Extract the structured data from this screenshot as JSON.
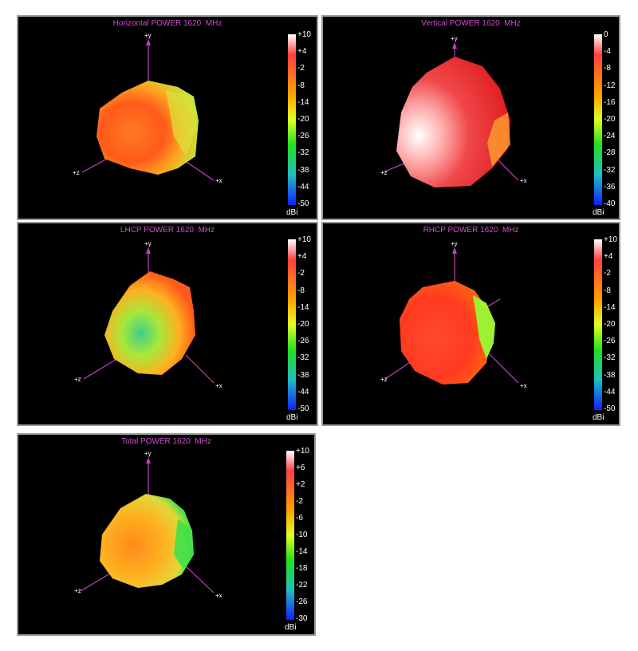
{
  "chart_data": [
    {
      "type": "heatmap",
      "title": "Horizontal POWER 1620  MHz",
      "colorbar_unit": "dBi",
      "colorbar_ticks": [
        "+10",
        "+4",
        "-2",
        "-8",
        "-14",
        "-20",
        "-26",
        "-32",
        "-38",
        "-44",
        "-50"
      ],
      "axes": [
        "+y",
        "+z",
        "+x"
      ],
      "dominant_color": "#ff6a1a",
      "accent_color": "#b8f03a"
    },
    {
      "type": "heatmap",
      "title": "Vertical POWER 1620  MHz",
      "colorbar_unit": "dBi",
      "colorbar_ticks": [
        "0",
        "-4",
        "-8",
        "-12",
        "-16",
        "-20",
        "-24",
        "-28",
        "-32",
        "-36",
        "-40"
      ],
      "axes": [
        "+y",
        "+z",
        "+x"
      ],
      "dominant_color": "#f0474a",
      "accent_color": "#ffffff"
    },
    {
      "type": "heatmap",
      "title": "LHCP POWER 1620  MHz",
      "colorbar_unit": "dBi",
      "colorbar_ticks": [
        "+10",
        "+4",
        "-2",
        "-8",
        "-14",
        "-20",
        "-26",
        "-32",
        "-38",
        "-44",
        "-50"
      ],
      "axes": [
        "+y",
        "+z",
        "+x"
      ],
      "dominant_color": "#d9e840",
      "accent_color": "#3ecf8e"
    },
    {
      "type": "heatmap",
      "title": "RHCP POWER 1620  MHz",
      "colorbar_unit": "dBi",
      "colorbar_ticks": [
        "+10",
        "+4",
        "-2",
        "-8",
        "-14",
        "-20",
        "-26",
        "-32",
        "-38",
        "-44",
        "-50"
      ],
      "axes": [
        "+y",
        "+z",
        "+x"
      ],
      "dominant_color": "#ff3a20",
      "accent_color": "#9ef030"
    },
    {
      "type": "heatmap",
      "title": "Total POWER 1620  MHz",
      "colorbar_unit": "dBi",
      "colorbar_ticks": [
        "+10",
        "+6",
        "+2",
        "-2",
        "-6",
        "-10",
        "-14",
        "-18",
        "-22",
        "-26",
        "-30"
      ],
      "axes": [
        "+y",
        "+z",
        "+x"
      ],
      "dominant_color": "#ffa01a",
      "accent_color": "#3ee04a"
    }
  ]
}
